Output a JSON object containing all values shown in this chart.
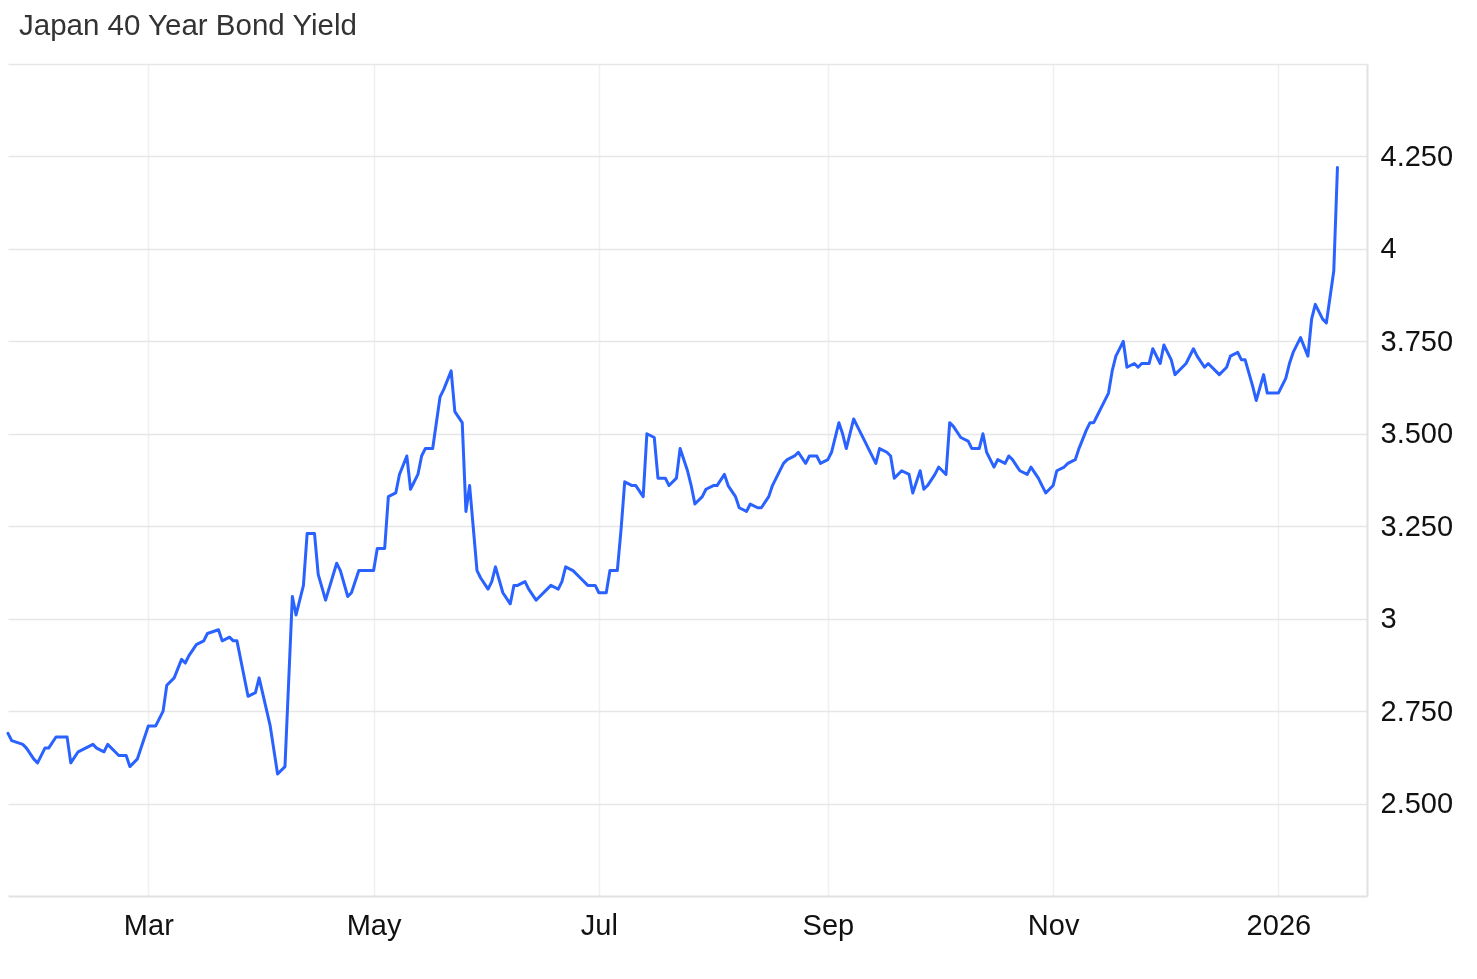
{
  "chart_data": {
    "type": "line",
    "title": "Japan 40 Year Bond Yield",
    "x": [
      "2025-01-22",
      "2025-01-23",
      "2025-01-26",
      "2025-01-27",
      "2025-01-29",
      "2025-01-30",
      "2025-02-01",
      "2025-02-02",
      "2025-02-04",
      "2025-02-06",
      "2025-02-07",
      "2025-02-08",
      "2025-02-10",
      "2025-02-12",
      "2025-02-14",
      "2025-02-15",
      "2025-02-17",
      "2025-02-18",
      "2025-02-20",
      "2025-02-21",
      "2025-02-23",
      "2025-02-24",
      "2025-02-26",
      "2025-03-01",
      "2025-03-02",
      "2025-03-03",
      "2025-03-05",
      "2025-03-06",
      "2025-03-08",
      "2025-03-10",
      "2025-03-11",
      "2025-03-12",
      "2025-03-14",
      "2025-03-16",
      "2025-03-17",
      "2025-03-20",
      "2025-03-21",
      "2025-03-23",
      "2025-03-24",
      "2025-03-25",
      "2025-03-28",
      "2025-03-30",
      "2025-03-31",
      "2025-04-03",
      "2025-04-05",
      "2025-04-07",
      "2025-04-09",
      "2025-04-10",
      "2025-04-12",
      "2025-04-13",
      "2025-04-15",
      "2025-04-16",
      "2025-04-18",
      "2025-04-21",
      "2025-04-22",
      "2025-04-24",
      "2025-04-25",
      "2025-04-27",
      "2025-04-28",
      "2025-05-01",
      "2025-05-02",
      "2025-05-04",
      "2025-05-05",
      "2025-05-07",
      "2025-05-08",
      "2025-05-10",
      "2025-05-11",
      "2025-05-13",
      "2025-05-14",
      "2025-05-15",
      "2025-05-17",
      "2025-05-19",
      "2025-05-20",
      "2025-05-22",
      "2025-05-23",
      "2025-05-25",
      "2025-05-26",
      "2025-05-27",
      "2025-05-29",
      "2025-05-30",
      "2025-06-01",
      "2025-06-02",
      "2025-06-03",
      "2025-06-05",
      "2025-06-07",
      "2025-06-08",
      "2025-06-09",
      "2025-06-11",
      "2025-06-12",
      "2025-06-14",
      "2025-06-15",
      "2025-06-17",
      "2025-06-18",
      "2025-06-20",
      "2025-06-21",
      "2025-06-22",
      "2025-06-24",
      "2025-06-26",
      "2025-06-28",
      "2025-06-30",
      "2025-07-01",
      "2025-07-03",
      "2025-07-04",
      "2025-07-06",
      "2025-07-07",
      "2025-07-08",
      "2025-07-10",
      "2025-07-11",
      "2025-07-13",
      "2025-07-14",
      "2025-07-16",
      "2025-07-17",
      "2025-07-19",
      "2025-07-20",
      "2025-07-22",
      "2025-07-23",
      "2025-07-25",
      "2025-07-26",
      "2025-07-27",
      "2025-07-29",
      "2025-07-30",
      "2025-08-01",
      "2025-08-02",
      "2025-08-04",
      "2025-08-05",
      "2025-08-07",
      "2025-08-08",
      "2025-08-10",
      "2025-08-11",
      "2025-08-13",
      "2025-08-14",
      "2025-08-16",
      "2025-08-17",
      "2025-08-18",
      "2025-08-20",
      "2025-08-21",
      "2025-08-23",
      "2025-08-24",
      "2025-08-26",
      "2025-08-27",
      "2025-08-29",
      "2025-08-30",
      "2025-09-01",
      "2025-09-02",
      "2025-09-04",
      "2025-09-05",
      "2025-09-06",
      "2025-09-08",
      "2025-09-09",
      "2025-09-11",
      "2025-09-12",
      "2025-09-14",
      "2025-09-15",
      "2025-09-17",
      "2025-09-18",
      "2025-09-19",
      "2025-09-21",
      "2025-09-23",
      "2025-09-24",
      "2025-09-26",
      "2025-09-27",
      "2025-09-28",
      "2025-09-30",
      "2025-10-01",
      "2025-10-03",
      "2025-10-04",
      "2025-10-05",
      "2025-10-07",
      "2025-10-09",
      "2025-10-10",
      "2025-10-12",
      "2025-10-13",
      "2025-10-14",
      "2025-10-16",
      "2025-10-17",
      "2025-10-19",
      "2025-10-20",
      "2025-10-21",
      "2025-10-23",
      "2025-10-25",
      "2025-10-26",
      "2025-10-28",
      "2025-10-29",
      "2025-10-30",
      "2025-11-01",
      "2025-11-02",
      "2025-11-04",
      "2025-11-05",
      "2025-11-07",
      "2025-11-08",
      "2025-11-10",
      "2025-11-11",
      "2025-11-12",
      "2025-11-13",
      "2025-11-14",
      "2025-11-16",
      "2025-11-17",
      "2025-11-18",
      "2025-11-20",
      "2025-11-21",
      "2025-11-23",
      "2025-11-24",
      "2025-11-25",
      "2025-11-27",
      "2025-11-28",
      "2025-11-30",
      "2025-12-01",
      "2025-12-03",
      "2025-12-04",
      "2025-12-06",
      "2025-12-07",
      "2025-12-09",
      "2025-12-10",
      "2025-12-12",
      "2025-12-13",
      "2025-12-15",
      "2025-12-16",
      "2025-12-18",
      "2025-12-19",
      "2025-12-21",
      "2025-12-22",
      "2025-12-23",
      "2025-12-25",
      "2025-12-26",
      "2025-12-28",
      "2025-12-29",
      "2026-01-01",
      "2026-01-03",
      "2026-01-04",
      "2026-01-05",
      "2026-01-07",
      "2026-01-09",
      "2026-01-10",
      "2026-01-11",
      "2026-01-13",
      "2026-01-14",
      "2026-01-16",
      "2026-01-17"
    ],
    "series": [
      {
        "color": "#2962ff",
        "values": [
          2.69,
          2.67,
          2.66,
          2.65,
          2.62,
          2.61,
          2.65,
          2.65,
          2.68,
          2.68,
          2.68,
          2.61,
          2.64,
          2.65,
          2.66,
          2.65,
          2.64,
          2.66,
          2.64,
          2.63,
          2.63,
          2.6,
          2.62,
          2.71,
          2.71,
          2.71,
          2.75,
          2.82,
          2.84,
          2.89,
          2.88,
          2.9,
          2.93,
          2.94,
          2.96,
          2.97,
          2.94,
          2.95,
          2.94,
          2.94,
          2.79,
          2.8,
          2.84,
          2.71,
          2.58,
          2.6,
          3.06,
          3.01,
          3.09,
          3.23,
          3.23,
          3.12,
          3.05,
          3.15,
          3.13,
          3.06,
          3.07,
          3.13,
          3.13,
          3.13,
          3.19,
          3.19,
          3.33,
          3.34,
          3.39,
          3.44,
          3.35,
          3.39,
          3.44,
          3.46,
          3.46,
          3.6,
          3.62,
          3.67,
          3.56,
          3.53,
          3.29,
          3.36,
          3.13,
          3.11,
          3.08,
          3.1,
          3.14,
          3.07,
          3.04,
          3.09,
          3.09,
          3.1,
          3.08,
          3.05,
          3.06,
          3.08,
          3.09,
          3.08,
          3.1,
          3.14,
          3.13,
          3.11,
          3.09,
          3.09,
          3.07,
          3.07,
          3.13,
          3.13,
          3.24,
          3.37,
          3.36,
          3.36,
          3.33,
          3.5,
          3.49,
          3.38,
          3.38,
          3.36,
          3.38,
          3.46,
          3.4,
          3.36,
          3.31,
          3.33,
          3.35,
          3.36,
          3.36,
          3.39,
          3.36,
          3.33,
          3.3,
          3.29,
          3.31,
          3.3,
          3.3,
          3.33,
          3.36,
          3.38,
          3.42,
          3.43,
          3.44,
          3.45,
          3.42,
          3.44,
          3.44,
          3.42,
          3.43,
          3.45,
          3.53,
          3.5,
          3.46,
          3.54,
          3.52,
          3.48,
          3.46,
          3.42,
          3.46,
          3.45,
          3.44,
          3.38,
          3.4,
          3.39,
          3.34,
          3.4,
          3.35,
          3.36,
          3.39,
          3.41,
          3.39,
          3.53,
          3.52,
          3.49,
          3.48,
          3.46,
          3.46,
          3.5,
          3.45,
          3.41,
          3.43,
          3.42,
          3.44,
          3.43,
          3.4,
          3.39,
          3.41,
          3.38,
          3.36,
          3.34,
          3.36,
          3.4,
          3.41,
          3.42,
          3.43,
          3.46,
          3.51,
          3.53,
          3.53,
          3.55,
          3.57,
          3.61,
          3.67,
          3.71,
          3.75,
          3.68,
          3.69,
          3.68,
          3.69,
          3.69,
          3.73,
          3.69,
          3.74,
          3.7,
          3.66,
          3.68,
          3.69,
          3.73,
          3.71,
          3.68,
          3.69,
          3.67,
          3.66,
          3.68,
          3.71,
          3.72,
          3.7,
          3.7,
          3.63,
          3.59,
          3.66,
          3.61,
          3.61,
          3.65,
          3.69,
          3.72,
          3.76,
          3.71,
          3.81,
          3.85,
          3.81,
          3.8,
          3.94,
          4.22
        ]
      }
    ],
    "xlim": [
      "2025-01-22",
      "2026-01-25"
    ],
    "xticks": [
      {
        "value": "2025-03-01",
        "label": "Mar"
      },
      {
        "value": "2025-05-01",
        "label": "May"
      },
      {
        "value": "2025-07-01",
        "label": "Jul"
      },
      {
        "value": "2025-09-01",
        "label": "Sep"
      },
      {
        "value": "2025-11-01",
        "label": "Nov"
      },
      {
        "value": "2026-01-01",
        "label": "2026"
      }
    ],
    "ylim": [
      2.25,
      4.5
    ],
    "yticks": [
      {
        "value": 2.5,
        "label": "2.500"
      },
      {
        "value": 2.75,
        "label": "2.750"
      },
      3,
      {
        "value": 3.25,
        "label": "3.250"
      },
      {
        "value": 3.5,
        "label": "3.500"
      },
      {
        "value": 3.75,
        "label": "3.750"
      },
      4,
      {
        "value": 4.25,
        "label": "4.250"
      },
      {
        "value": 4.5,
        "label": null
      }
    ],
    "grid": true
  }
}
